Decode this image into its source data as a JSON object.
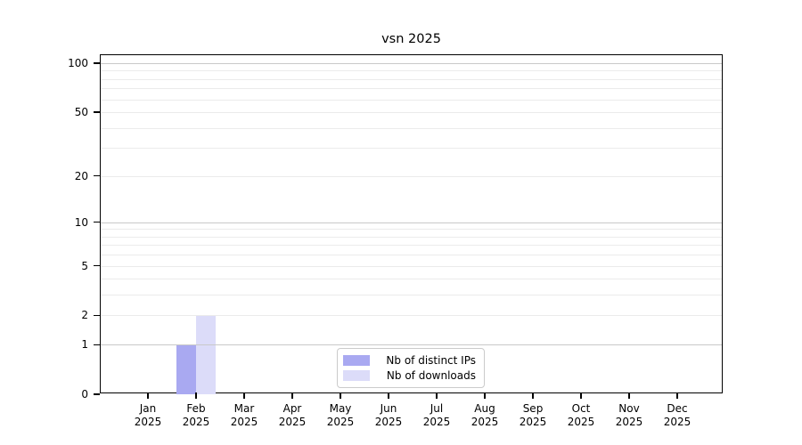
{
  "chart_data": {
    "type": "bar",
    "title": "vsn 2025",
    "categories": [
      "Jan 2025",
      "Feb 2025",
      "Mar 2025",
      "Apr 2025",
      "May 2025",
      "Jun 2025",
      "Jul 2025",
      "Aug 2025",
      "Sep 2025",
      "Oct 2025",
      "Nov 2025",
      "Dec 2025"
    ],
    "series": [
      {
        "name": "Nb of distinct IPs",
        "color": "#a9a9f1",
        "values": [
          0,
          1,
          0,
          0,
          0,
          0,
          0,
          0,
          0,
          0,
          0,
          0
        ]
      },
      {
        "name": "Nb of downloads",
        "color": "#dcdcf9",
        "values": [
          0,
          2,
          0,
          0,
          0,
          0,
          0,
          0,
          0,
          0,
          0,
          0
        ]
      }
    ],
    "y_axis": {
      "scale": "log1p",
      "tick_values": [
        0,
        1,
        2,
        5,
        10,
        20,
        50,
        100
      ],
      "range": [
        0,
        115
      ],
      "gridlines_minor": [
        2,
        3,
        4,
        5,
        6,
        7,
        8,
        9,
        20,
        30,
        40,
        50,
        60,
        70,
        80,
        90
      ],
      "gridlines_major": [
        1,
        10,
        100
      ]
    },
    "x_axis": {
      "tick_label_year": "2025"
    },
    "legend": {
      "position": "lower center"
    },
    "grid": true,
    "background": "#ffffff",
    "axis_color": "#000000"
  }
}
